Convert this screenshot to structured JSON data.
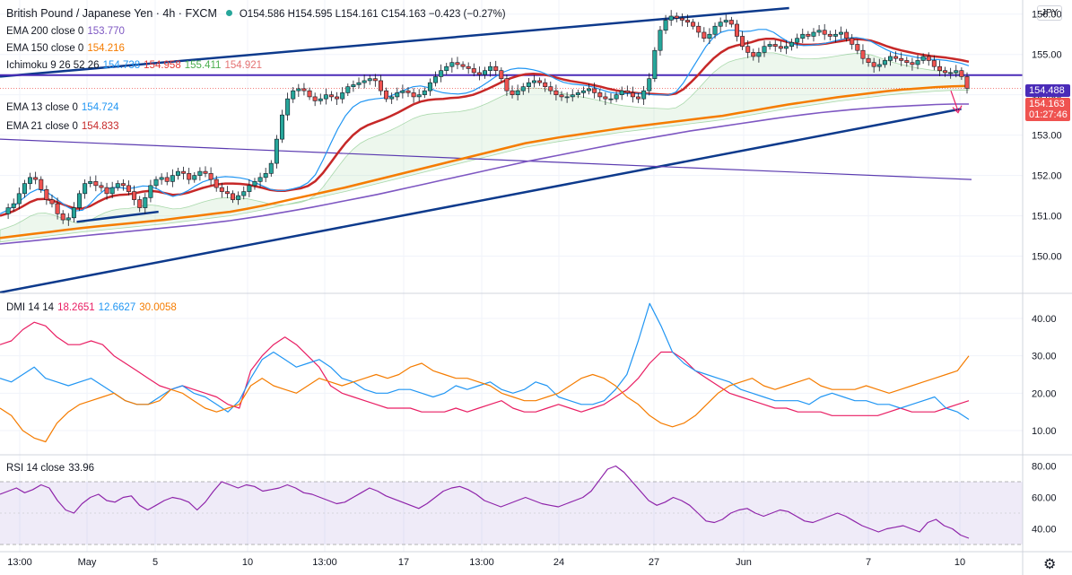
{
  "header": {
    "title": "British Pound / Japanese Yen · 4h · FXCM",
    "ohlc": "O154.586 H154.595 L154.161 C154.163 −0.423 (−0.27%)",
    "currency": "JPY"
  },
  "indicators": [
    {
      "label": "EMA 200 close 0",
      "value": "153.770",
      "color": "#7e57c2"
    },
    {
      "label": "EMA 150 close 0",
      "value": "154.216",
      "color": "#f57c00"
    },
    {
      "label": "Ichimoku 9 26 52 26",
      "values": [
        "154.738",
        "154.958",
        "155.411",
        "154.921"
      ],
      "colors": [
        "#2196f3",
        "#e53935",
        "#4caf50",
        "#e57373"
      ]
    },
    {
      "label": "EMA 13 close 0",
      "value": "154.724",
      "color": "#2196f3"
    },
    {
      "label": "EMA 21 close 0",
      "value": "154.833",
      "color": "#c62828"
    }
  ],
  "price_boxes": {
    "level": "154.488",
    "level_color": "#4a2bb8",
    "last": "154.163",
    "countdown": "01:27:46",
    "last_color": "#ef5350"
  },
  "dmi_legend": {
    "label": "DMI 14 14",
    "values": [
      "18.2651",
      "12.6627",
      "30.0058"
    ],
    "colors": [
      "#e91e63",
      "#2196f3",
      "#f57c00"
    ]
  },
  "rsi_legend": {
    "label": "RSI 14 close",
    "value": "33.96",
    "color": "#131722"
  },
  "x_axis": [
    "13:00",
    "May",
    "5",
    "10",
    "13:00",
    "17",
    "13:00",
    "24",
    "27",
    "Jun",
    "7",
    "10"
  ],
  "chart_data": [
    {
      "type": "candlestick",
      "title": "British Pound / Japanese Yen · 4h · FXCM",
      "y_ticks": [
        150,
        151,
        152,
        153,
        154,
        155,
        156
      ],
      "ylim": [
        149.1,
        156.35
      ],
      "grid": true,
      "colors": {
        "up": "#26a69a",
        "down": "#ef5350",
        "ema13": "#2196f3",
        "ema21": "#c62828",
        "ema150": "#f57c00",
        "ema200": "#7e57c2",
        "trend": "#0d3a8c",
        "horizontal": "#4a2bb8"
      },
      "price_path": [
        151.05,
        151.2,
        151.3,
        151.55,
        151.8,
        151.95,
        151.9,
        151.65,
        151.4,
        151.3,
        151.05,
        150.9,
        150.95,
        151.2,
        151.55,
        151.8,
        151.85,
        151.75,
        151.7,
        151.55,
        151.7,
        151.8,
        151.75,
        151.6,
        151.4,
        151.2,
        151.45,
        151.75,
        151.9,
        151.95,
        151.85,
        152.0,
        152.1,
        152.05,
        151.9,
        152.0,
        152.1,
        152.05,
        151.9,
        151.7,
        151.6,
        151.55,
        151.4,
        151.5,
        151.6,
        151.75,
        151.85,
        151.95,
        152.05,
        152.3,
        152.9,
        153.5,
        153.9,
        154.1,
        154.15,
        154.1,
        153.95,
        153.85,
        153.9,
        154.0,
        153.95,
        153.9,
        154.05,
        154.2,
        154.25,
        154.3,
        154.35,
        154.4,
        154.35,
        154.1,
        153.9,
        153.95,
        154.05,
        154.1,
        154.05,
        153.95,
        154.0,
        154.1,
        154.3,
        154.45,
        154.6,
        154.7,
        154.8,
        154.75,
        154.7,
        154.65,
        154.55,
        154.5,
        154.6,
        154.7,
        154.6,
        154.4,
        154.1,
        154.0,
        154.1,
        154.2,
        154.3,
        154.35,
        154.3,
        154.2,
        154.1,
        154.0,
        153.95,
        153.95,
        154.0,
        154.05,
        154.1,
        154.15,
        154.05,
        153.95,
        153.9,
        153.9,
        154.0,
        154.1,
        154.05,
        153.95,
        153.9,
        154.1,
        154.4,
        155.1,
        155.6,
        155.85,
        155.95,
        155.9,
        155.85,
        155.8,
        155.7,
        155.55,
        155.4,
        155.5,
        155.7,
        155.8,
        155.85,
        155.75,
        155.45,
        155.2,
        155.05,
        154.95,
        155.05,
        155.2,
        155.25,
        155.2,
        155.15,
        155.2,
        155.3,
        155.4,
        155.5,
        155.45,
        155.55,
        155.6,
        155.5,
        155.45,
        155.5,
        155.55,
        155.4,
        155.25,
        155.1,
        154.9,
        154.8,
        154.7,
        154.75,
        154.85,
        154.95,
        154.9,
        154.85,
        154.8,
        154.75,
        154.85,
        154.95,
        154.85,
        154.7,
        154.6,
        154.55,
        154.55,
        154.6,
        154.45,
        154.16
      ],
      "ema13": [
        151.05,
        151.14,
        151.26,
        151.42,
        151.57,
        151.66,
        151.62,
        151.49,
        151.35,
        151.22,
        151.12,
        151.14,
        151.3,
        151.5,
        151.65,
        151.7,
        151.7,
        151.67,
        151.7,
        151.74,
        151.73,
        151.66,
        151.55,
        151.48,
        151.53,
        151.62,
        151.74,
        151.84,
        151.9,
        151.95,
        151.97,
        151.96,
        151.94,
        151.9,
        151.82,
        151.74,
        151.66,
        151.62,
        151.63,
        151.67,
        151.72,
        151.82,
        152.02,
        152.38,
        152.78,
        153.16,
        153.48,
        153.7,
        153.82,
        153.87,
        153.9,
        153.92,
        153.97,
        154.05,
        154.13,
        154.2,
        154.22,
        154.18,
        154.1,
        154.05,
        154.03,
        154.02,
        154.04,
        154.1,
        154.2,
        154.32,
        154.45,
        154.56,
        154.63,
        154.66,
        154.65,
        154.62,
        154.57,
        154.49,
        154.39,
        154.31,
        154.27,
        154.25,
        154.23,
        154.19,
        154.13,
        154.07,
        154.04,
        154.03,
        154.03,
        154.03,
        154.02,
        154.0,
        154.0,
        153.99,
        154.07,
        154.3,
        154.6,
        154.9,
        155.2,
        155.42,
        155.55,
        155.6,
        155.6,
        155.57,
        155.58,
        155.62,
        155.62,
        155.55,
        155.42,
        155.31,
        155.24,
        155.22,
        155.23,
        155.25,
        155.28,
        155.33,
        155.37,
        155.41,
        155.42,
        155.39,
        155.32,
        155.22,
        155.12,
        155.04,
        155.0,
        154.97,
        154.93,
        154.9,
        154.88,
        154.87,
        154.85,
        154.82,
        154.78,
        154.72
      ],
      "ema21": [
        151.0,
        151.06,
        151.13,
        151.23,
        151.34,
        151.41,
        151.42,
        151.38,
        151.31,
        151.24,
        151.18,
        151.18,
        151.24,
        151.34,
        151.43,
        151.49,
        151.52,
        151.53,
        151.56,
        151.6,
        151.62,
        151.6,
        151.56,
        151.52,
        151.53,
        151.57,
        151.63,
        151.69,
        151.74,
        151.78,
        151.8,
        151.8,
        151.79,
        151.77,
        151.73,
        151.69,
        151.64,
        151.62,
        151.62,
        151.65,
        151.68,
        151.74,
        151.86,
        152.06,
        152.31,
        152.56,
        152.8,
        153.0,
        153.15,
        153.25,
        153.32,
        153.39,
        153.47,
        153.56,
        153.66,
        153.76,
        153.83,
        153.87,
        153.89,
        153.9,
        153.92,
        153.93,
        153.96,
        154.0,
        154.07,
        154.15,
        154.24,
        154.33,
        154.41,
        154.47,
        154.51,
        154.52,
        154.51,
        154.48,
        154.43,
        154.38,
        154.34,
        154.31,
        154.28,
        154.24,
        154.2,
        154.15,
        154.11,
        154.08,
        154.06,
        154.04,
        154.03,
        154.02,
        154.01,
        154.0,
        154.03,
        154.14,
        154.31,
        154.5,
        154.71,
        154.9,
        155.05,
        155.16,
        155.22,
        155.26,
        155.3,
        155.36,
        155.39,
        155.39,
        155.35,
        155.3,
        155.26,
        155.24,
        155.24,
        155.25,
        155.27,
        155.3,
        155.33,
        155.36,
        155.38,
        155.37,
        155.34,
        155.28,
        155.21,
        155.15,
        155.1,
        155.06,
        155.02,
        154.99,
        154.96,
        154.94,
        154.92,
        154.89,
        154.86,
        154.82
      ],
      "ema150": [
        150.45,
        150.5,
        150.55,
        150.6,
        150.65,
        150.7,
        150.74,
        150.78,
        150.82,
        150.86,
        150.9,
        150.95,
        151.0,
        151.05,
        151.1,
        151.17,
        151.25,
        151.34,
        151.43,
        151.52,
        151.61,
        151.7,
        151.8,
        151.9,
        152.0,
        152.1,
        152.2,
        152.3,
        152.4,
        152.5,
        152.6,
        152.7,
        152.8,
        152.87,
        152.94,
        153.0,
        153.06,
        153.12,
        153.18,
        153.23,
        153.28,
        153.33,
        153.38,
        153.43,
        153.48,
        153.55,
        153.62,
        153.69,
        153.76,
        153.82,
        153.88,
        153.94,
        153.99,
        154.04,
        154.09,
        154.13,
        154.16,
        154.19,
        154.21,
        154.22
      ],
      "ema200": [
        150.3,
        150.34,
        150.38,
        150.42,
        150.46,
        150.5,
        150.54,
        150.58,
        150.62,
        150.66,
        150.7,
        150.74,
        150.78,
        150.83,
        150.88,
        150.94,
        151.0,
        151.07,
        151.14,
        151.21,
        151.29,
        151.37,
        151.45,
        151.53,
        151.62,
        151.71,
        151.8,
        151.89,
        151.98,
        152.07,
        152.16,
        152.25,
        152.34,
        152.42,
        152.5,
        152.58,
        152.66,
        152.74,
        152.82,
        152.89,
        152.96,
        153.03,
        153.1,
        153.16,
        153.22,
        153.28,
        153.34,
        153.4,
        153.46,
        153.51,
        153.56,
        153.6,
        153.64,
        153.67,
        153.7,
        153.72,
        153.74,
        153.76,
        153.77,
        153.77
      ],
      "trendlines": [
        {
          "name": "upper-channel",
          "from": [
            0,
            154.45
          ],
          "to": [
            0.719,
            156.15
          ]
        },
        {
          "name": "lower-channel",
          "from": [
            0,
            149.1
          ],
          "to": [
            0.94,
            153.65
          ]
        },
        {
          "name": "descending",
          "from": [
            0,
            152.9
          ],
          "to": [
            0.95,
            151.9
          ]
        },
        {
          "name": "short-support",
          "from": [
            0.075,
            150.85
          ],
          "to": [
            0.155,
            151.1
          ]
        }
      ],
      "horizontal_level": 154.488
    },
    {
      "type": "line",
      "title": "DMI 14 14",
      "y_ticks": [
        10,
        20,
        30,
        40
      ],
      "ylim": [
        4,
        46
      ],
      "series": [
        {
          "name": "+DI",
          "values": [
            33,
            34,
            37,
            39,
            38,
            35,
            33,
            33,
            34,
            33,
            30,
            28,
            26,
            24,
            22,
            21,
            22,
            21,
            20,
            19,
            17,
            16,
            26,
            30,
            33,
            35,
            33,
            30,
            27,
            22,
            20,
            19,
            18,
            17,
            16,
            16,
            16,
            15,
            15,
            15,
            16,
            15,
            16,
            17,
            18,
            16,
            15,
            15,
            16,
            17,
            16,
            15,
            16,
            17,
            19,
            21,
            24,
            28,
            31,
            31,
            29,
            26,
            24,
            22,
            20,
            19,
            18,
            17,
            16,
            16,
            15,
            15,
            15,
            14,
            14,
            14,
            14,
            14,
            15,
            16,
            15,
            15,
            15,
            16,
            17,
            18
          ]
        },
        {
          "name": "-DI",
          "values": [
            24,
            23,
            25,
            27,
            24,
            23,
            22,
            23,
            24,
            22,
            20,
            18,
            17,
            17,
            19,
            21,
            22,
            20,
            19,
            17,
            15,
            18,
            24,
            29,
            31,
            29,
            27,
            28,
            29,
            27,
            24,
            23,
            21,
            20,
            20,
            21,
            21,
            20,
            19,
            20,
            22,
            21,
            22,
            23,
            21,
            20,
            21,
            23,
            22,
            19,
            18,
            17,
            17,
            18,
            21,
            25,
            34,
            44,
            38,
            31,
            28,
            26,
            25,
            24,
            23,
            21,
            20,
            19,
            18,
            18,
            18,
            17,
            19,
            20,
            19,
            18,
            18,
            17,
            17,
            16,
            17,
            18,
            19,
            16,
            15,
            13
          ]
        },
        {
          "name": "ADX",
          "values": [
            16,
            14,
            10,
            8,
            7,
            12,
            15,
            17,
            18,
            19,
            20,
            18,
            17,
            17,
            18,
            21,
            20,
            18,
            16,
            15,
            16,
            17,
            22,
            24,
            22,
            21,
            20,
            22,
            24,
            23,
            22,
            23,
            24,
            25,
            24,
            25,
            27,
            28,
            26,
            25,
            24,
            24,
            23,
            22,
            20,
            19,
            18,
            18,
            19,
            20,
            22,
            24,
            25,
            24,
            22,
            19,
            17,
            14,
            12,
            11,
            12,
            14,
            17,
            20,
            22,
            23,
            24,
            22,
            21,
            22,
            23,
            24,
            22,
            21,
            21,
            21,
            22,
            21,
            20,
            21,
            22,
            23,
            24,
            25,
            26,
            30
          ]
        }
      ]
    },
    {
      "type": "line",
      "title": "RSI 14 close",
      "y_ticks": [
        40,
        60,
        80
      ],
      "ylim": [
        26,
        86
      ],
      "band": [
        30,
        70
      ],
      "series": [
        {
          "name": "RSI",
          "values": [
            62,
            64,
            66,
            63,
            65,
            68,
            66,
            58,
            52,
            50,
            56,
            60,
            62,
            58,
            57,
            60,
            61,
            55,
            52,
            55,
            58,
            60,
            59,
            57,
            52,
            57,
            64,
            70,
            68,
            66,
            68,
            67,
            64,
            65,
            66,
            68,
            66,
            63,
            62,
            60,
            58,
            56,
            57,
            60,
            63,
            66,
            64,
            61,
            59,
            57,
            55,
            53,
            56,
            60,
            64,
            66,
            67,
            65,
            62,
            58,
            56,
            54,
            56,
            58,
            60,
            58,
            56,
            55,
            54,
            56,
            58,
            60,
            64,
            71,
            78,
            80,
            76,
            70,
            64,
            58,
            55,
            57,
            60,
            58,
            55,
            50,
            45,
            44,
            46,
            50,
            52,
            53,
            50,
            48,
            50,
            52,
            51,
            48,
            45,
            44,
            46,
            48,
            50,
            48,
            45,
            42,
            40,
            38,
            40,
            41,
            42,
            40,
            38,
            44,
            46,
            42,
            40,
            36,
            34
          ]
        }
      ]
    }
  ]
}
